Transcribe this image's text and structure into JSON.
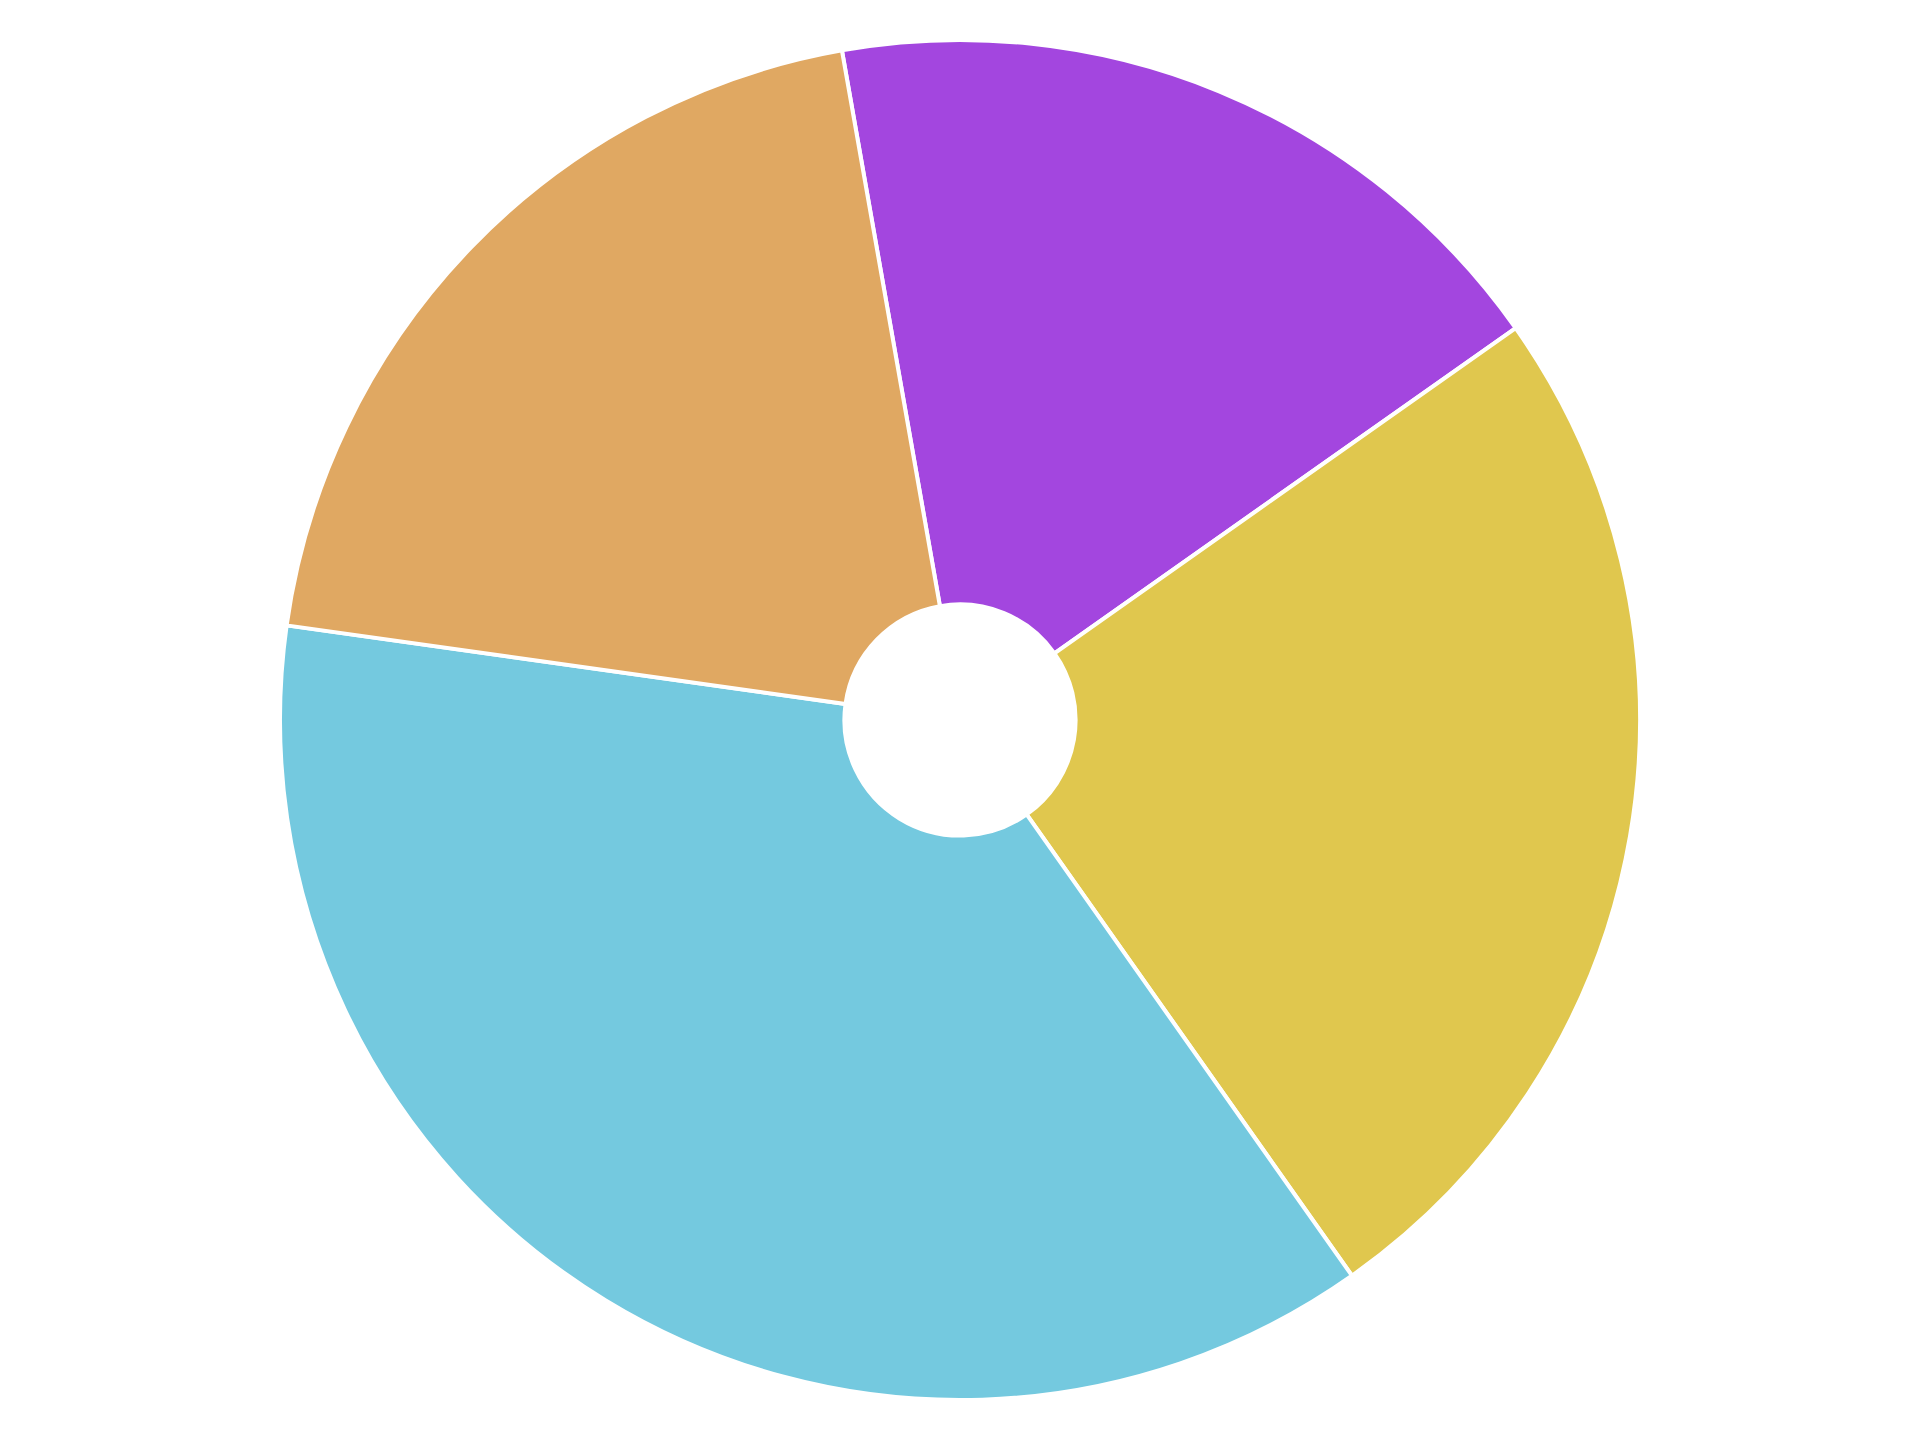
{
  "chart_data": {
    "type": "donut",
    "categories": [
      null,
      null,
      null,
      null
    ],
    "values": [
      18,
      25,
      37,
      20
    ],
    "colors": [
      "#a346df",
      "#e0c74e",
      "#74c9df",
      "#e0a862"
    ],
    "legend": false
  }
}
